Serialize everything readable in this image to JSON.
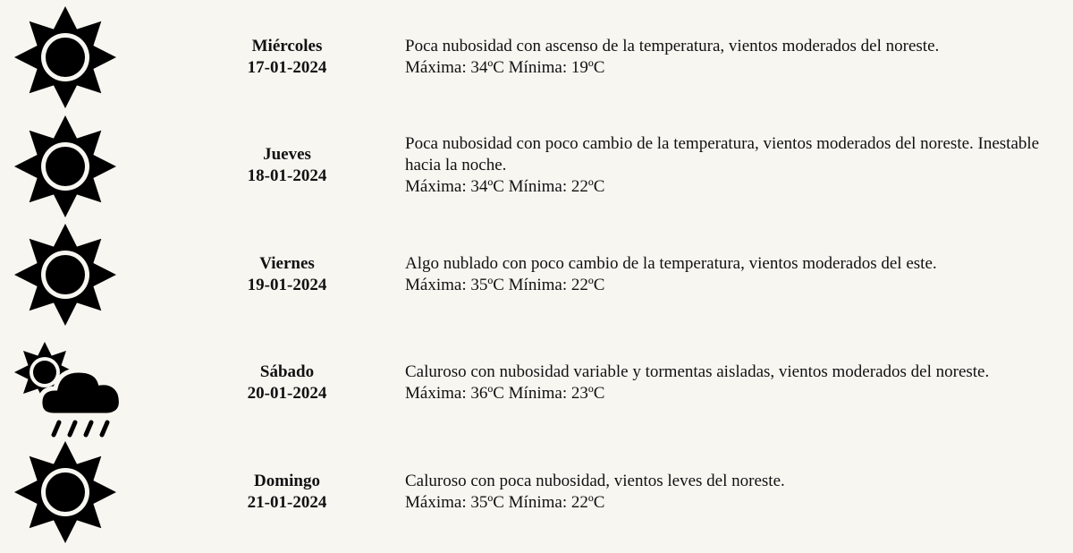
{
  "forecast": [
    {
      "icon": "sun-icon",
      "day": "Miércoles",
      "date": "17-01-2024",
      "description": "Poca nubosidad con ascenso de la temperatura, vientos moderados del noreste.",
      "temps": "Máxima: 34ºC Mínima: 19ºC"
    },
    {
      "icon": "sun-icon",
      "day": "Jueves",
      "date": "18-01-2024",
      "description": "Poca nubosidad con poco cambio de la temperatura, vientos moderados del noreste. Inestable hacia la noche.",
      "temps": "Máxima: 34ºC Mínima: 22ºC"
    },
    {
      "icon": "sun-icon",
      "day": "Viernes",
      "date": "19-01-2024",
      "description": "Algo nublado con poco cambio de la temperatura, vientos moderados del este.",
      "temps": "Máxima: 35ºC Mínima: 22ºC"
    },
    {
      "icon": "sun-cloud-rain-icon",
      "day": "Sábado",
      "date": "20-01-2024",
      "description": "Caluroso con nubosidad variable y tormentas aisladas, vientos moderados del noreste.",
      "temps": "Máxima: 36ºC Mínima: 23ºC"
    },
    {
      "icon": "sun-icon",
      "day": "Domingo",
      "date": "21-01-2024",
      "description": "Caluroso con poca nubosidad, vientos leves del noreste.",
      "temps": "Máxima: 35ºC Mínima: 22ºC"
    }
  ]
}
